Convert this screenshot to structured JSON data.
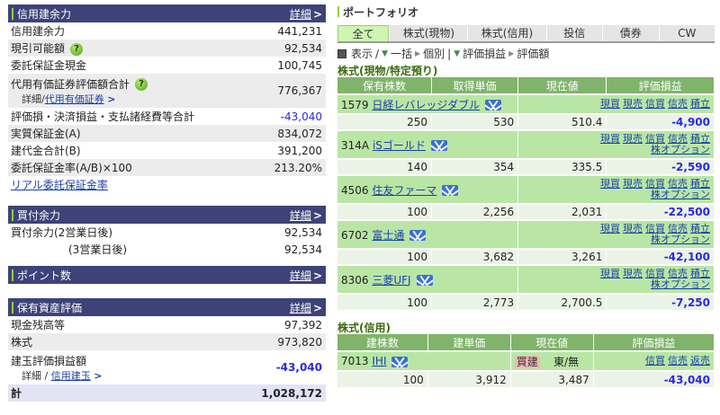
{
  "credit": {
    "title": "信用建余力",
    "detail": "詳細",
    "rows": [
      {
        "label": "信用建余力",
        "value": "441,231"
      },
      {
        "label": "現引可能額",
        "value": "92,534"
      },
      {
        "label": "委託保証金現金",
        "value": "100,745"
      },
      {
        "label": "代用有価証券評価額合計",
        "sub_prefix": "詳細/",
        "sub_link": "代用有価証券",
        "value": "776,367"
      },
      {
        "label": "評価損・決済損益・支払諸経費等合計",
        "value": "-43,040"
      },
      {
        "label": "実質保証金(A)",
        "value": "834,072"
      },
      {
        "label": "建代金合計(B)",
        "value": "391,200"
      },
      {
        "label": "委託保証金率(A/B)×100",
        "value": "213.20%"
      }
    ],
    "link": "リアル委託保証金率"
  },
  "buying": {
    "title": "買付余力",
    "detail": "詳細",
    "rows": [
      {
        "label": "買付余力(2営業日後)",
        "value": "92,534"
      },
      {
        "label": "(3営業日後)",
        "value": "92,534"
      }
    ]
  },
  "points": {
    "title": "ポイント数",
    "detail": "詳細"
  },
  "assets": {
    "title": "保有資産評価",
    "detail": "詳細",
    "rows": [
      {
        "label": "現金残高等",
        "value": "97,392"
      },
      {
        "label": "株式",
        "value": "973,820"
      },
      {
        "label": "建玉評価損益額",
        "sub_prefix": "詳細 / ",
        "sub_link": "信用建玉",
        "value": "-43,040"
      }
    ],
    "total_label": "計",
    "total_value": "1,028,172"
  },
  "portfolio": {
    "title": "ポートフォリオ",
    "tabs": [
      "全て",
      "株式(現物)",
      "株式(信用)",
      "投信",
      "債券",
      "CW"
    ],
    "view": {
      "display": "表示",
      "bulk": "一括",
      "single": "個別",
      "pl": "評価損益",
      "value": "評価額"
    },
    "spot": {
      "title": "株式(現物/特定預り)",
      "headers": [
        "保有株数",
        "取得単価",
        "現在値",
        "評価損益"
      ],
      "actions": [
        "現買",
        "現売",
        "信買",
        "信売",
        "積立"
      ],
      "option": "株オプション",
      "rows": [
        {
          "code": "1579",
          "name": "日経レバレッジダブル",
          "qty": "250",
          "cost": "530",
          "price": "510.4",
          "pl": "-4,900",
          "option": false
        },
        {
          "code": "314A",
          "name": "iSゴールド",
          "qty": "140",
          "cost": "354",
          "price": "335.5",
          "pl": "-2,590",
          "option": true
        },
        {
          "code": "4506",
          "name": "住友ファーマ",
          "qty": "100",
          "cost": "2,256",
          "price": "2,031",
          "pl": "-22,500",
          "option": true
        },
        {
          "code": "6702",
          "name": "富士通",
          "qty": "100",
          "cost": "3,682",
          "price": "3,261",
          "pl": "-42,100",
          "option": true
        },
        {
          "code": "8306",
          "name": "三菱UFJ",
          "qty": "100",
          "cost": "2,773",
          "price": "2,700.5",
          "pl": "-7,250",
          "option": true
        }
      ]
    },
    "margin": {
      "title": "株式(信用)",
      "headers": [
        "建株数",
        "建単価",
        "現在値",
        "評価損益"
      ],
      "actions": [
        "信買",
        "信売",
        "返売"
      ],
      "rows": [
        {
          "code": "7013",
          "name": "IHI",
          "type": "買建",
          "market": "東/無",
          "qty": "100",
          "cost": "3,912",
          "price": "3,487",
          "pl": "-43,040"
        }
      ]
    }
  }
}
